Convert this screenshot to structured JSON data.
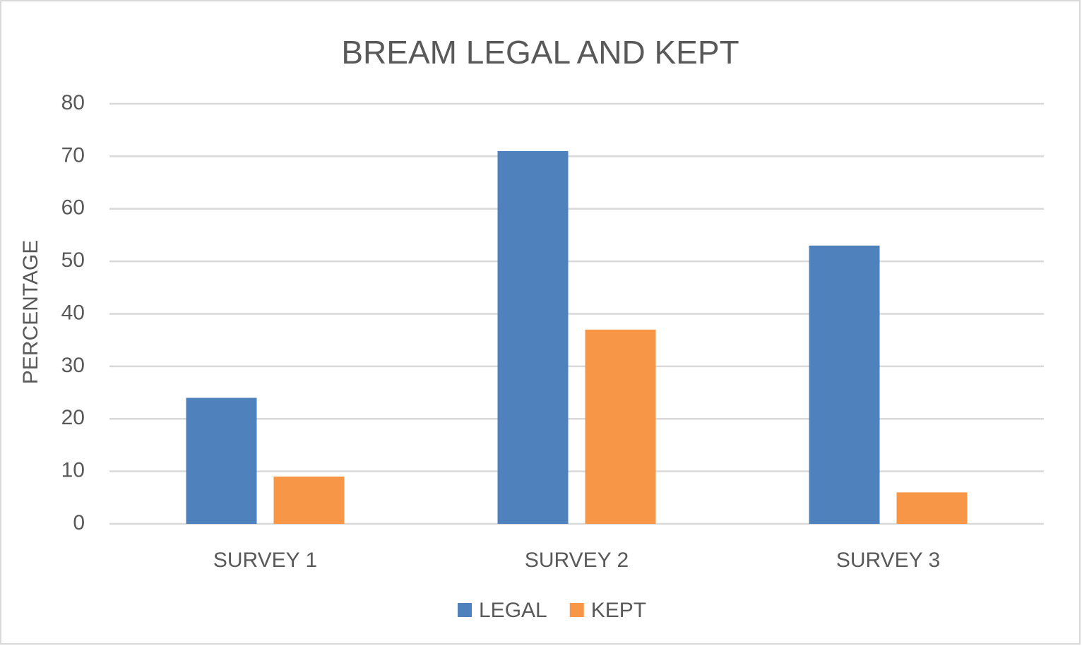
{
  "chart_data": {
    "type": "bar",
    "title": "BREAM LEGAL AND KEPT",
    "y_label": "PERCENTAGE",
    "categories": [
      "SURVEY 1",
      "SURVEY 2",
      "SURVEY 3"
    ],
    "series": [
      {
        "name": "LEGAL",
        "color": "#4f81bd",
        "values": [
          24,
          71,
          53
        ]
      },
      {
        "name": "KEPT",
        "color": "#f79646",
        "values": [
          9,
          37,
          6
        ]
      }
    ],
    "ylim": [
      0,
      80
    ],
    "yticks": [
      0,
      10,
      20,
      30,
      40,
      50,
      60,
      70,
      80
    ],
    "grid": true,
    "legend": "bottom"
  }
}
